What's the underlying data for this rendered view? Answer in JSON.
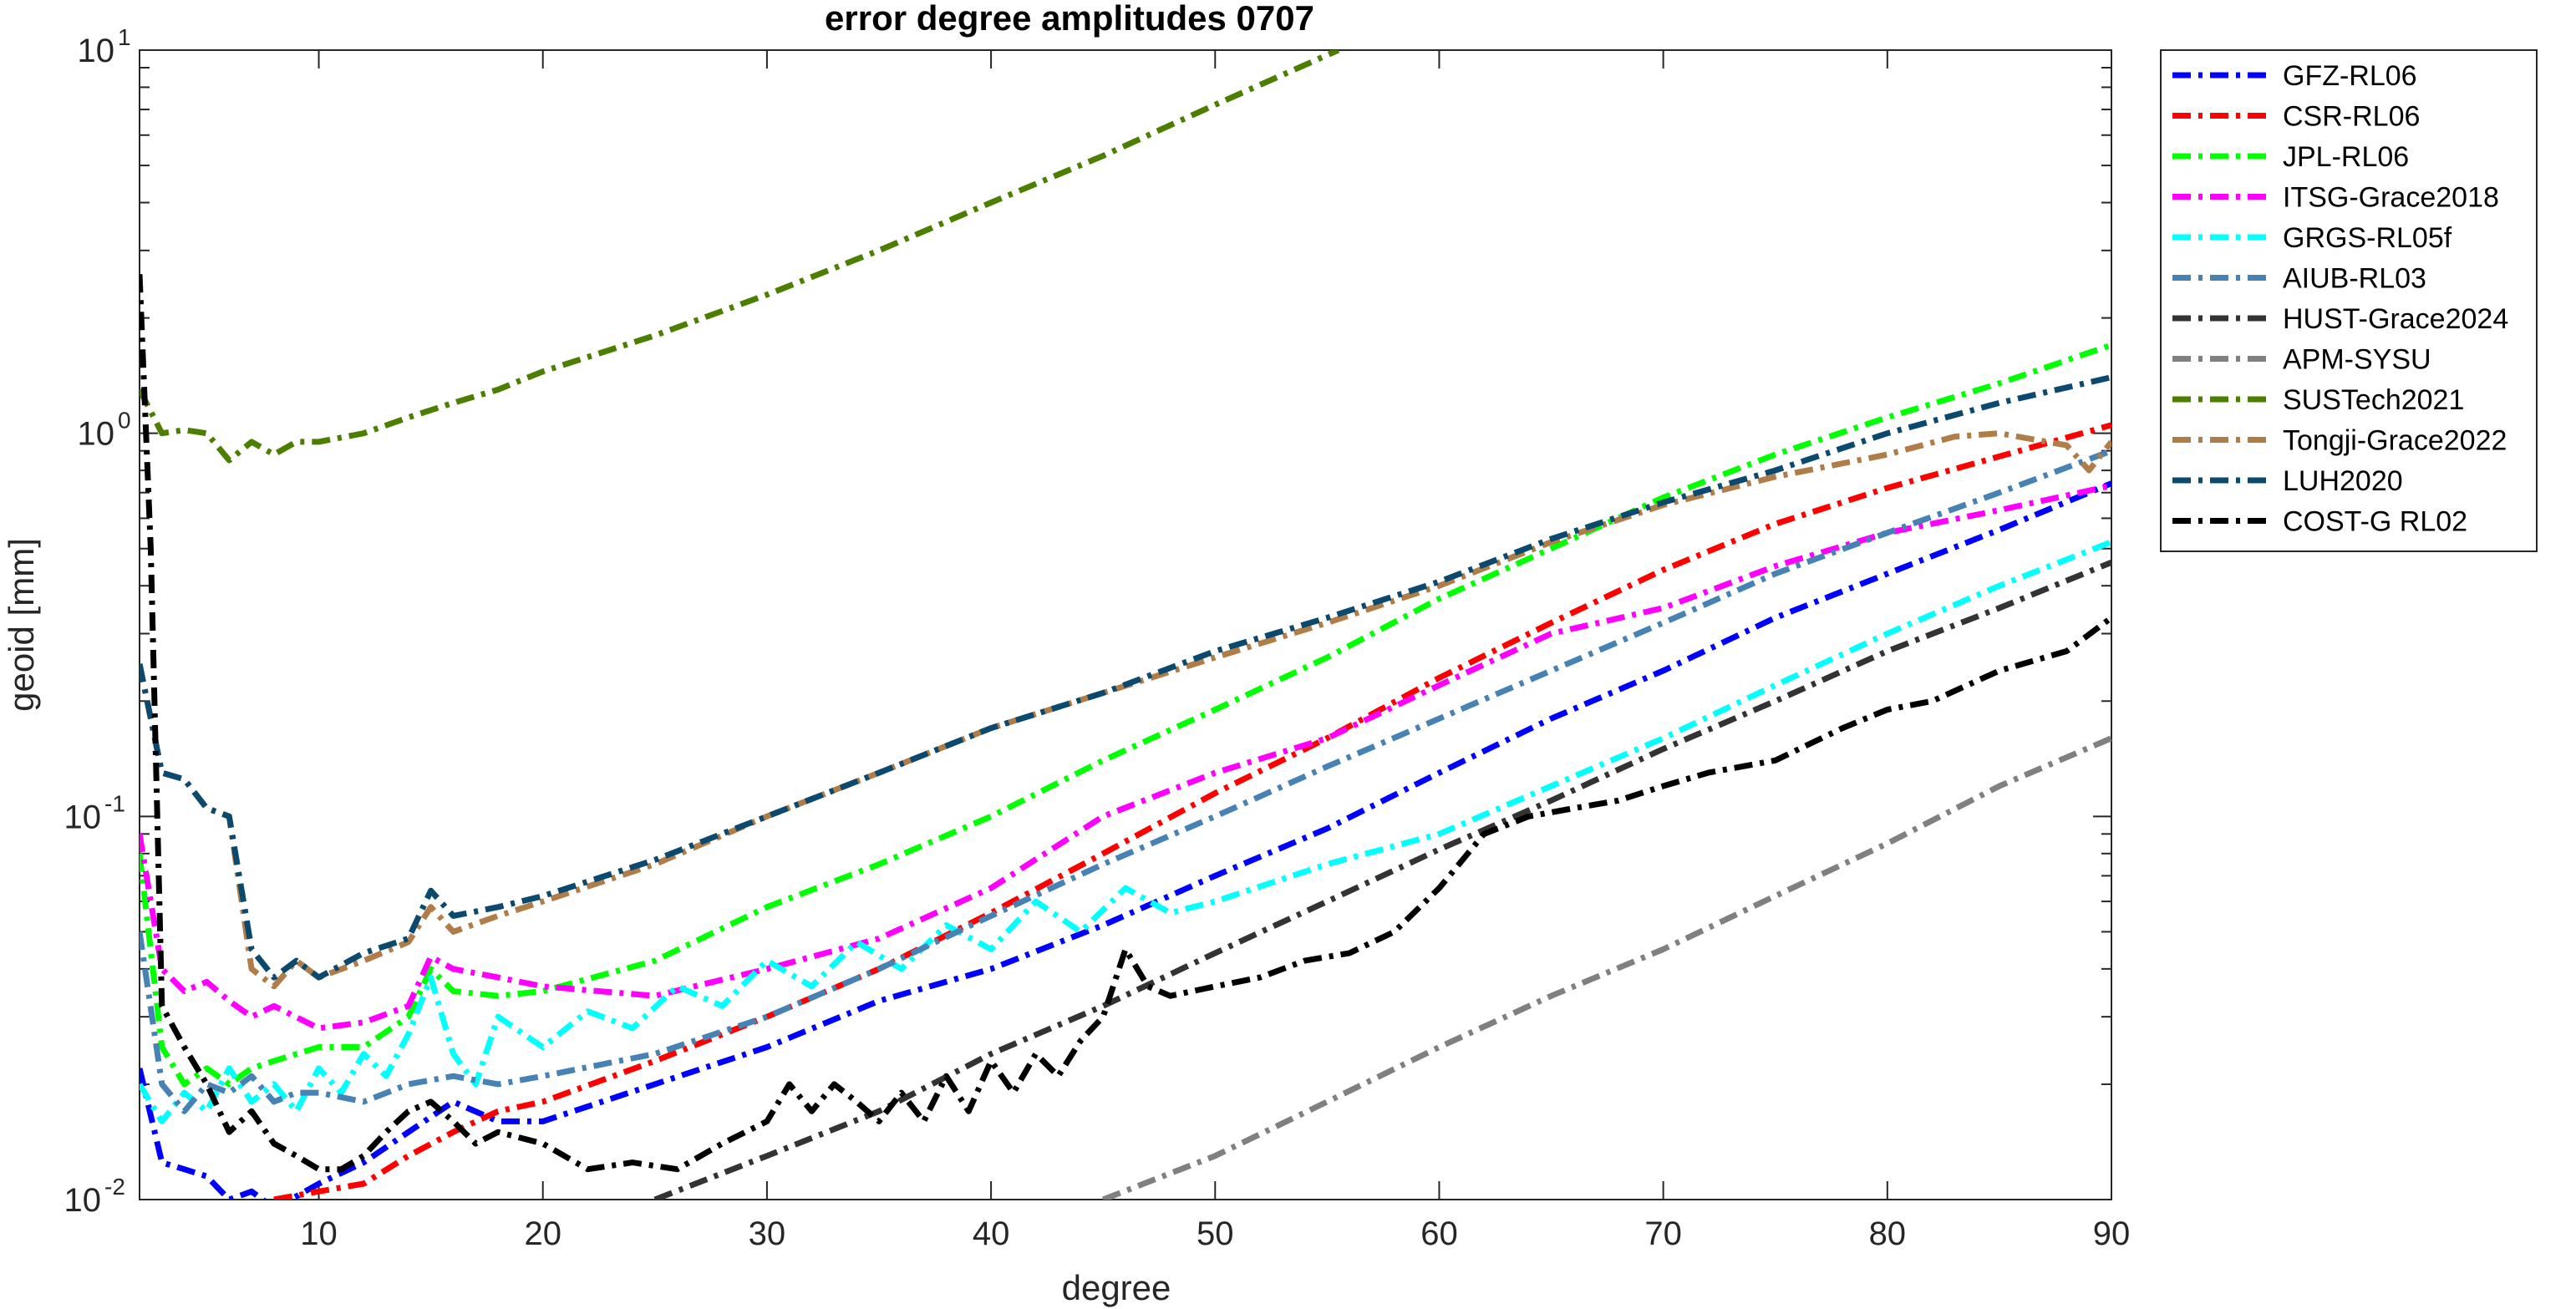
{
  "chart_data": {
    "type": "line",
    "title": "error degree amplitudes 0707",
    "xlabel": "degree",
    "ylabel": "geoid [mm]",
    "xlim": [
      2,
      90
    ],
    "ylim": [
      0.01,
      10
    ],
    "yscale": "log",
    "xticks": [
      10,
      20,
      30,
      40,
      50,
      60,
      70,
      80,
      90
    ],
    "yticks": [
      {
        "value": 0.01,
        "base": "10",
        "exp": "-2"
      },
      {
        "value": 0.1,
        "base": "10",
        "exp": "-1"
      },
      {
        "value": 1,
        "base": "10",
        "exp": "0"
      },
      {
        "value": 10,
        "base": "10",
        "exp": "1"
      }
    ],
    "grid": false,
    "legend_position": "outside-top-right",
    "line_style": "dash-dot",
    "series": [
      {
        "name": "GFZ-RL06",
        "color": "#0000ff",
        "x": [
          2,
          3,
          4,
          5,
          6,
          7,
          8,
          9,
          10,
          12,
          14,
          16,
          18,
          20,
          25,
          30,
          35,
          40,
          45,
          50,
          55,
          60,
          65,
          70,
          75,
          80,
          85,
          90
        ],
        "y": [
          0.022,
          0.0125,
          0.012,
          0.0115,
          0.01,
          0.0105,
          0.0095,
          0.0102,
          0.011,
          0.0125,
          0.015,
          0.018,
          0.016,
          0.016,
          0.02,
          0.025,
          0.033,
          0.04,
          0.052,
          0.07,
          0.093,
          0.13,
          0.18,
          0.24,
          0.33,
          0.43,
          0.56,
          0.74
        ]
      },
      {
        "name": "CSR-RL06",
        "color": "#ff0000",
        "x": [
          8,
          10,
          12,
          14,
          16,
          18,
          20,
          25,
          30,
          35,
          40,
          45,
          50,
          55,
          60,
          65,
          70,
          75,
          80,
          85,
          90
        ],
        "y": [
          0.01,
          0.0105,
          0.011,
          0.013,
          0.015,
          0.017,
          0.018,
          0.023,
          0.03,
          0.04,
          0.056,
          0.08,
          0.115,
          0.16,
          0.23,
          0.32,
          0.44,
          0.58,
          0.72,
          0.87,
          1.05
        ]
      },
      {
        "name": "JPL-RL06",
        "color": "#00ff00",
        "x": [
          2,
          3,
          4,
          5,
          6,
          7,
          8,
          10,
          12,
          14,
          15,
          16,
          18,
          20,
          25,
          30,
          35,
          40,
          45,
          50,
          55,
          60,
          65,
          70,
          75,
          80,
          85,
          90
        ],
        "y": [
          0.08,
          0.025,
          0.02,
          0.022,
          0.02,
          0.022,
          0.023,
          0.025,
          0.025,
          0.03,
          0.04,
          0.035,
          0.034,
          0.035,
          0.042,
          0.058,
          0.075,
          0.1,
          0.14,
          0.19,
          0.26,
          0.37,
          0.5,
          0.68,
          0.88,
          1.1,
          1.35,
          1.7
        ]
      },
      {
        "name": "ITSG-Grace2018",
        "color": "#ff00ff",
        "x": [
          2,
          3,
          4,
          5,
          6,
          7,
          8,
          10,
          12,
          14,
          15,
          16,
          18,
          20,
          25,
          30,
          35,
          40,
          45,
          50,
          55,
          60,
          65,
          70,
          75,
          80,
          85,
          90
        ],
        "y": [
          0.09,
          0.04,
          0.035,
          0.037,
          0.033,
          0.03,
          0.032,
          0.028,
          0.029,
          0.032,
          0.043,
          0.04,
          0.038,
          0.036,
          0.034,
          0.04,
          0.048,
          0.065,
          0.1,
          0.13,
          0.16,
          0.22,
          0.3,
          0.35,
          0.45,
          0.55,
          0.63,
          0.73
        ]
      },
      {
        "name": "GRGS-RL05f",
        "color": "#00ffff",
        "x": [
          2,
          3,
          4,
          5,
          6,
          7,
          8,
          9,
          10,
          11,
          12,
          13,
          14,
          15,
          16,
          17,
          18,
          20,
          22,
          24,
          26,
          28,
          30,
          32,
          34,
          36,
          38,
          40,
          42,
          44,
          46,
          48,
          50,
          55,
          60,
          65,
          70,
          75,
          80,
          85,
          90
        ],
        "y": [
          0.02,
          0.016,
          0.019,
          0.017,
          0.022,
          0.018,
          0.02,
          0.017,
          0.022,
          0.019,
          0.024,
          0.021,
          0.027,
          0.038,
          0.024,
          0.02,
          0.03,
          0.025,
          0.031,
          0.028,
          0.036,
          0.032,
          0.042,
          0.036,
          0.047,
          0.04,
          0.052,
          0.045,
          0.06,
          0.05,
          0.065,
          0.056,
          0.06,
          0.075,
          0.09,
          0.12,
          0.16,
          0.22,
          0.3,
          0.4,
          0.52
        ]
      },
      {
        "name": "AIUB-RL03",
        "color": "#4682b4",
        "x": [
          2,
          3,
          4,
          5,
          6,
          7,
          8,
          9,
          10,
          12,
          14,
          16,
          18,
          20,
          25,
          30,
          35,
          40,
          45,
          50,
          55,
          60,
          65,
          70,
          75,
          80,
          85,
          90
        ],
        "y": [
          0.05,
          0.02,
          0.017,
          0.02,
          0.019,
          0.021,
          0.018,
          0.019,
          0.019,
          0.018,
          0.02,
          0.021,
          0.02,
          0.021,
          0.024,
          0.03,
          0.04,
          0.055,
          0.075,
          0.1,
          0.135,
          0.18,
          0.24,
          0.32,
          0.43,
          0.55,
          0.7,
          0.9
        ]
      },
      {
        "name": "HUST-Grace2024",
        "color": "#333333",
        "x": [
          25,
          30,
          35,
          40,
          45,
          50,
          55,
          60,
          65,
          70,
          75,
          80,
          85,
          90
        ],
        "y": [
          0.01,
          0.013,
          0.017,
          0.024,
          0.032,
          0.044,
          0.06,
          0.082,
          0.11,
          0.15,
          0.2,
          0.27,
          0.35,
          0.46
        ]
      },
      {
        "name": "APM-SYSU",
        "color": "#808080",
        "x": [
          45,
          50,
          55,
          60,
          65,
          70,
          75,
          80,
          85,
          90
        ],
        "y": [
          0.01,
          0.013,
          0.018,
          0.025,
          0.034,
          0.045,
          0.062,
          0.085,
          0.12,
          0.16
        ]
      },
      {
        "name": "SUSTech2021",
        "color": "#4c7f00",
        "x": [
          2,
          3,
          4,
          5,
          6,
          7,
          8,
          9,
          10,
          12,
          14,
          16,
          18,
          20,
          25,
          30,
          35,
          40,
          45,
          50,
          55.5
        ],
        "y": [
          1.3,
          1.0,
          1.02,
          1.0,
          0.85,
          0.95,
          0.88,
          0.95,
          0.95,
          1.0,
          1.1,
          1.2,
          1.3,
          1.45,
          1.8,
          2.3,
          3.0,
          4.0,
          5.3,
          7.2,
          10
        ]
      },
      {
        "name": "Tongji-Grace2022",
        "color": "#b07d48",
        "x": [
          2,
          3,
          4,
          5,
          6,
          7,
          8,
          9,
          10,
          12,
          14,
          15,
          16,
          18,
          20,
          25,
          30,
          35,
          40,
          45,
          50,
          55,
          60,
          65,
          70,
          75,
          80,
          83,
          85,
          88,
          89,
          90
        ],
        "y": [
          0.25,
          0.13,
          0.125,
          0.105,
          0.1,
          0.04,
          0.036,
          0.042,
          0.038,
          0.042,
          0.047,
          0.058,
          0.05,
          0.055,
          0.06,
          0.075,
          0.1,
          0.13,
          0.17,
          0.21,
          0.26,
          0.32,
          0.4,
          0.52,
          0.65,
          0.77,
          0.88,
          0.98,
          1.0,
          0.93,
          0.8,
          0.95
        ]
      },
      {
        "name": "LUH2020",
        "color": "#0b4a6e",
        "x": [
          2,
          3,
          4,
          5,
          6,
          7,
          8,
          9,
          10,
          12,
          14,
          15,
          16,
          18,
          20,
          25,
          30,
          35,
          40,
          45,
          50,
          55,
          60,
          65,
          70,
          75,
          80,
          85,
          90
        ],
        "y": [
          0.25,
          0.13,
          0.125,
          0.105,
          0.1,
          0.045,
          0.038,
          0.042,
          0.038,
          0.044,
          0.048,
          0.064,
          0.055,
          0.058,
          0.062,
          0.077,
          0.1,
          0.13,
          0.17,
          0.21,
          0.27,
          0.33,
          0.41,
          0.53,
          0.66,
          0.8,
          1.0,
          1.2,
          1.4
        ]
      },
      {
        "name": "COST-G RL02",
        "color": "#000000",
        "x": [
          2,
          2.5,
          3,
          4,
          5,
          6,
          7,
          8,
          9,
          10,
          11,
          12,
          13,
          14,
          15,
          16,
          17,
          18,
          20,
          22,
          24,
          26,
          28,
          30,
          31,
          32,
          33,
          34,
          35,
          36,
          37,
          38,
          39,
          40,
          41,
          42,
          43,
          44,
          45,
          46,
          47,
          48,
          50,
          52,
          54,
          56,
          58,
          60,
          62,
          64,
          66,
          68,
          70,
          72,
          75,
          78,
          80,
          82,
          85,
          88,
          90
        ],
        "y": [
          2.6,
          0.5,
          0.032,
          0.025,
          0.02,
          0.015,
          0.017,
          0.014,
          0.013,
          0.012,
          0.012,
          0.013,
          0.015,
          0.017,
          0.018,
          0.016,
          0.014,
          0.015,
          0.014,
          0.012,
          0.0125,
          0.012,
          0.014,
          0.016,
          0.02,
          0.017,
          0.02,
          0.018,
          0.016,
          0.019,
          0.016,
          0.021,
          0.017,
          0.023,
          0.019,
          0.024,
          0.021,
          0.026,
          0.03,
          0.045,
          0.036,
          0.034,
          0.036,
          0.038,
          0.042,
          0.044,
          0.05,
          0.065,
          0.09,
          0.1,
          0.105,
          0.11,
          0.12,
          0.13,
          0.14,
          0.17,
          0.19,
          0.2,
          0.24,
          0.27,
          0.33
        ]
      }
    ]
  }
}
